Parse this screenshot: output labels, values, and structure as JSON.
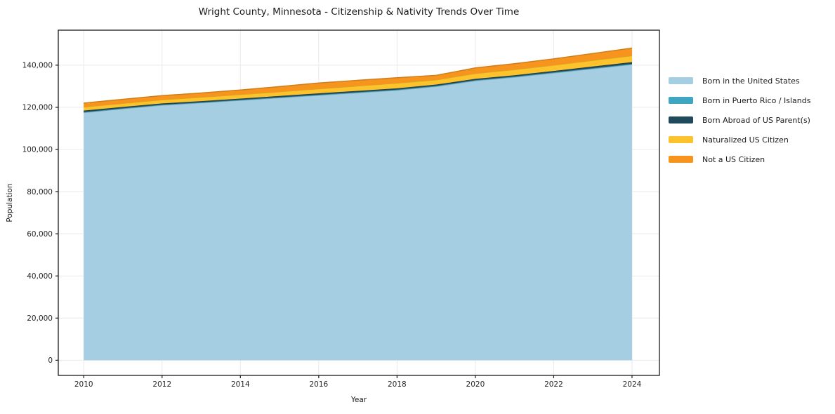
{
  "chart_data": {
    "type": "area",
    "stacked": true,
    "title": "Wright County, Minnesota - Citizenship & Nativity Trends Over Time",
    "xlabel": "Year",
    "ylabel": "Population",
    "x": [
      2010,
      2011,
      2012,
      2013,
      2014,
      2015,
      2016,
      2017,
      2018,
      2019,
      2020,
      2021,
      2022,
      2023,
      2024
    ],
    "series": [
      {
        "name": "Born in the United States",
        "color": "#a6cee3",
        "values": [
          117500,
          119300,
          121000,
          122100,
          123300,
          124500,
          125700,
          126900,
          128100,
          129900,
          132600,
          134300,
          136300,
          138300,
          140300
        ]
      },
      {
        "name": "Born in Puerto Rico / Islands",
        "color": "#3ea6c1",
        "values": [
          250,
          250,
          250,
          250,
          250,
          270,
          280,
          280,
          280,
          280,
          300,
          300,
          300,
          300,
          300
        ]
      },
      {
        "name": "Born Abroad of US Parent(s)",
        "color": "#1f4a5c",
        "values": [
          700,
          650,
          600,
          600,
          600,
          620,
          650,
          640,
          630,
          600,
          600,
          600,
          650,
          750,
          850
        ]
      },
      {
        "name": "Naturalized US Citizen",
        "color": "#fdc32c",
        "values": [
          1700,
          1700,
          1750,
          1850,
          1950,
          2050,
          2150,
          2350,
          2500,
          2250,
          2600,
          2700,
          2800,
          2950,
          3050
        ]
      },
      {
        "name": "Not a US Citizen",
        "color": "#f6941e",
        "values": [
          1850,
          1900,
          1950,
          2000,
          2100,
          2400,
          2750,
          2650,
          2550,
          2150,
          2600,
          2800,
          2950,
          3250,
          3600
        ]
      }
    ],
    "xticks": [
      2010,
      2012,
      2014,
      2016,
      2018,
      2020,
      2022,
      2024
    ],
    "xtick_labels": [
      "2010",
      "2012",
      "2014",
      "2016",
      "2018",
      "2020",
      "2022",
      "2024"
    ],
    "yticks": [
      0,
      20000,
      40000,
      60000,
      80000,
      100000,
      120000,
      140000
    ],
    "ytick_labels": [
      "0",
      "20,000",
      "40,000",
      "60,000",
      "80,000",
      "100,000",
      "120,000",
      "140,000"
    ],
    "xlim": [
      2009.35,
      2024.7
    ],
    "ylim": [
      -7200,
      156600
    ],
    "grid": true,
    "grid_color": "#e9e9e9",
    "frame_color": "#1a1a1a",
    "legend_position": "right"
  }
}
